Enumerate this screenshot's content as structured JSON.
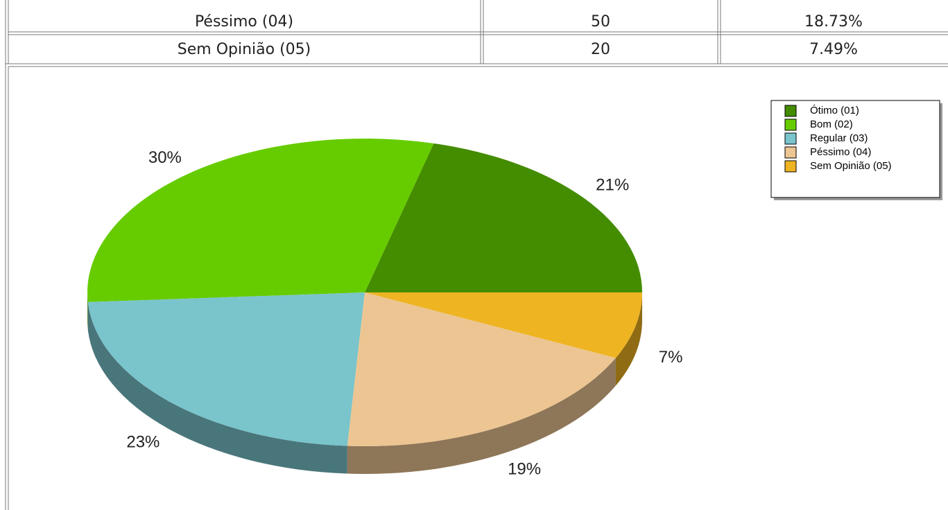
{
  "table": {
    "rows": [
      [
        "Péssimo (04)",
        "50",
        "18.73%"
      ],
      [
        "Sem Opinião (05)",
        "20",
        "7.49%"
      ]
    ]
  },
  "chart_data": {
    "type": "pie",
    "categories": [
      "Ótimo (01)",
      "Bom (02)",
      "Regular (03)",
      "Péssimo (04)",
      "Sem Opinião (05)"
    ],
    "values": [
      21,
      30,
      23,
      19,
      7
    ],
    "value_labels": [
      "21%",
      "30%",
      "23%",
      "19%",
      "7%"
    ],
    "colors": [
      "#448c00",
      "#66cc00",
      "#7ac4cc",
      "#ecc592",
      "#eeb422"
    ],
    "legend": "top-right"
  }
}
